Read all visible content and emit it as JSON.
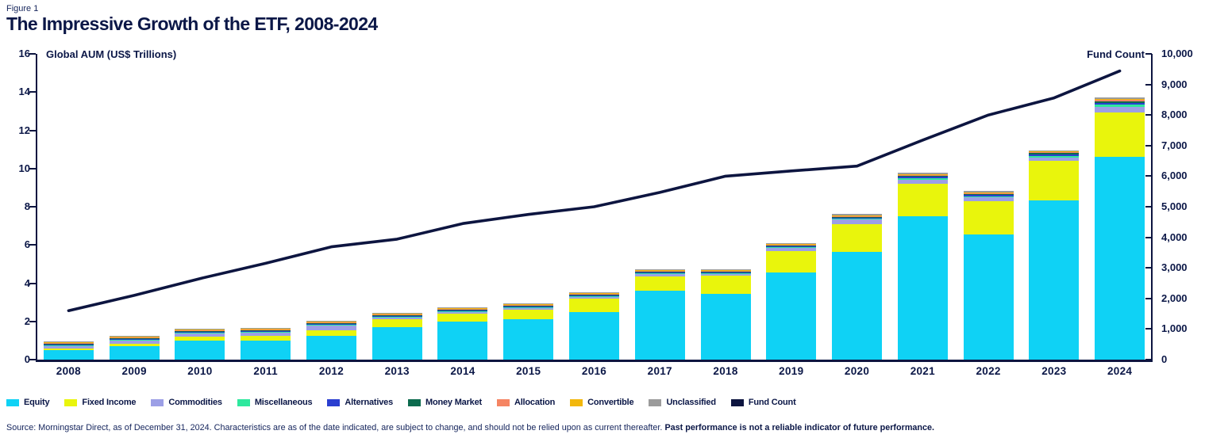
{
  "figure_label": "Figure 1",
  "title": "The Impressive Growth of the ETF, 2008-2024",
  "colors": {
    "navy_text": "#0b1747",
    "fund_count_line": "#0d1540",
    "background": "#ffffff"
  },
  "chart_data": {
    "type": "bar",
    "subtype": "stacked-bars-with-line",
    "title": "The Impressive Growth of the ETF, 2008-2024",
    "categories": [
      "2008",
      "2009",
      "2010",
      "2011",
      "2012",
      "2013",
      "2014",
      "2015",
      "2016",
      "2017",
      "2018",
      "2019",
      "2020",
      "2021",
      "2022",
      "2023",
      "2024"
    ],
    "left_axis": {
      "label": "Global AUM (US$ Trillions)",
      "min": 0,
      "max": 16,
      "ticks": [
        "0",
        "2",
        "4",
        "6",
        "8",
        "10",
        "12",
        "14",
        "16"
      ]
    },
    "right_axis": {
      "label": "Fund Count",
      "min": 0,
      "max": 10000,
      "ticks": [
        "0",
        "1,000",
        "2,000",
        "3,000",
        "4,000",
        "5,000",
        "6,000",
        "7,000",
        "8,000",
        "9,000",
        "10,000"
      ]
    },
    "grid": false,
    "legend_position": "bottom",
    "series": [
      {
        "name": "Equity",
        "color": "#0fd2f5",
        "values": [
          0.5,
          0.7,
          1.0,
          1.0,
          1.25,
          1.72,
          2.0,
          2.12,
          2.5,
          3.6,
          3.45,
          4.55,
          5.65,
          7.5,
          6.55,
          8.35,
          10.6
        ]
      },
      {
        "name": "Fixed Income",
        "color": "#e9f50c",
        "values": [
          0.1,
          0.15,
          0.22,
          0.26,
          0.3,
          0.38,
          0.4,
          0.48,
          0.7,
          0.76,
          0.95,
          1.15,
          1.45,
          1.7,
          1.75,
          2.05,
          2.35
        ]
      },
      {
        "name": "Commodities",
        "color": "#9c9fe6",
        "values": [
          0.1,
          0.15,
          0.15,
          0.16,
          0.23,
          0.1,
          0.1,
          0.1,
          0.08,
          0.1,
          0.08,
          0.13,
          0.22,
          0.22,
          0.18,
          0.16,
          0.28
        ]
      },
      {
        "name": "Miscellaneous",
        "color": "#2ee89e",
        "values": [
          0.02,
          0.03,
          0.03,
          0.03,
          0.04,
          0.03,
          0.03,
          0.04,
          0.03,
          0.05,
          0.04,
          0.05,
          0.06,
          0.08,
          0.06,
          0.08,
          0.1
        ]
      },
      {
        "name": "Alternatives",
        "color": "#2b3fd0",
        "values": [
          0.01,
          0.02,
          0.02,
          0.02,
          0.03,
          0.03,
          0.03,
          0.03,
          0.03,
          0.03,
          0.04,
          0.04,
          0.05,
          0.06,
          0.08,
          0.1,
          0.12
        ]
      },
      {
        "name": "Money Market",
        "color": "#0c6b4e",
        "values": [
          0.02,
          0.05,
          0.03,
          0.03,
          0.03,
          0.03,
          0.03,
          0.04,
          0.03,
          0.04,
          0.04,
          0.04,
          0.05,
          0.05,
          0.06,
          0.07,
          0.08
        ]
      },
      {
        "name": "Allocation",
        "color": "#f58563",
        "values": [
          0.01,
          0.01,
          0.01,
          0.01,
          0.02,
          0.02,
          0.02,
          0.02,
          0.02,
          0.03,
          0.03,
          0.03,
          0.03,
          0.04,
          0.04,
          0.05,
          0.05
        ]
      },
      {
        "name": "Convertible",
        "color": "#f2b70c",
        "values": [
          0.005,
          0.005,
          0.01,
          0.01,
          0.01,
          0.01,
          0.01,
          0.01,
          0.01,
          0.01,
          0.01,
          0.01,
          0.02,
          0.02,
          0.02,
          0.03,
          0.03
        ]
      },
      {
        "name": "Unclassified",
        "color": "#9b9b9b",
        "values": [
          0.02,
          0.03,
          0.03,
          0.03,
          0.03,
          0.04,
          0.04,
          0.05,
          0.05,
          0.05,
          0.04,
          0.06,
          0.07,
          0.08,
          0.06,
          0.06,
          0.09
        ]
      }
    ],
    "line_series": {
      "name": "Fund Count",
      "color": "#0d1540",
      "axis": "right",
      "values": [
        1600,
        2100,
        2650,
        3150,
        3690,
        3940,
        4450,
        4750,
        5000,
        5470,
        6000,
        6170,
        6330,
        7180,
        8000,
        8560,
        9440
      ]
    }
  },
  "source": {
    "text": "Source: Morningstar Direct, as of December 31, 2024. Characteristics are as of the date indicated, are subject to change, and should not be relied upon as current thereafter. ",
    "bold_text": "Past performance is not a reliable indicator of future performance."
  }
}
